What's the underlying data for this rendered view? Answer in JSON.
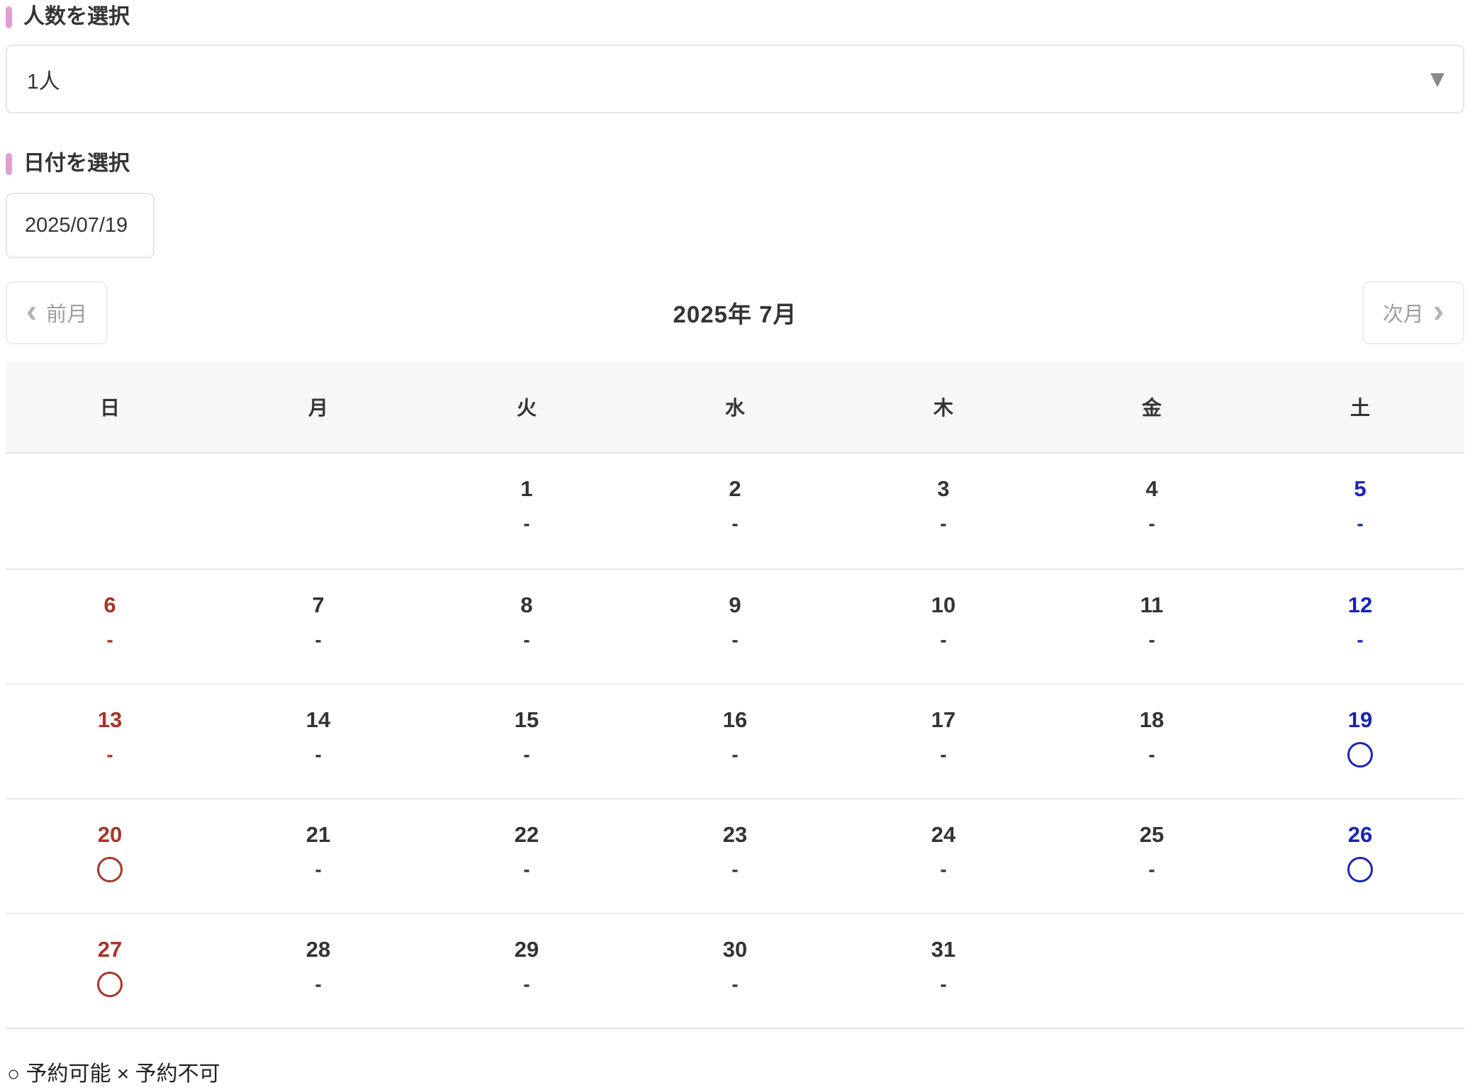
{
  "colors": {
    "accent_pink": "#e49cd5",
    "sunday_red": "#a83428",
    "saturday_blue": "#1b23b4",
    "text_dark": "#333333"
  },
  "icons": {
    "dropdown_arrow": "▼",
    "chevron_left": "‹",
    "chevron_right": "›"
  },
  "people_section": {
    "label": "人数を選択",
    "selected_value": "1人"
  },
  "date_section": {
    "label": "日付を選択",
    "value": "2025/07/19"
  },
  "calendar": {
    "prev_button_label": "前月",
    "next_button_label": "次月",
    "title": "2025年 7月",
    "weekdays": [
      "日",
      "月",
      "火",
      "水",
      "木",
      "金",
      "土"
    ],
    "weeks": [
      [
        {
          "d": "",
          "s": ""
        },
        {
          "d": "",
          "s": ""
        },
        {
          "d": "1",
          "s": "-"
        },
        {
          "d": "2",
          "s": "-"
        },
        {
          "d": "3",
          "s": "-"
        },
        {
          "d": "4",
          "s": "-"
        },
        {
          "d": "5",
          "s": "-"
        }
      ],
      [
        {
          "d": "6",
          "s": "-"
        },
        {
          "d": "7",
          "s": "-"
        },
        {
          "d": "8",
          "s": "-"
        },
        {
          "d": "9",
          "s": "-"
        },
        {
          "d": "10",
          "s": "-"
        },
        {
          "d": "11",
          "s": "-"
        },
        {
          "d": "12",
          "s": "-"
        }
      ],
      [
        {
          "d": "13",
          "s": "-"
        },
        {
          "d": "14",
          "s": "-"
        },
        {
          "d": "15",
          "s": "-"
        },
        {
          "d": "16",
          "s": "-"
        },
        {
          "d": "17",
          "s": "-"
        },
        {
          "d": "18",
          "s": "-"
        },
        {
          "d": "19",
          "s": "o"
        }
      ],
      [
        {
          "d": "20",
          "s": "o"
        },
        {
          "d": "21",
          "s": "-"
        },
        {
          "d": "22",
          "s": "-"
        },
        {
          "d": "23",
          "s": "-"
        },
        {
          "d": "24",
          "s": "-"
        },
        {
          "d": "25",
          "s": "-"
        },
        {
          "d": "26",
          "s": "o"
        }
      ],
      [
        {
          "d": "27",
          "s": "o"
        },
        {
          "d": "28",
          "s": "-"
        },
        {
          "d": "29",
          "s": "-"
        },
        {
          "d": "30",
          "s": "-"
        },
        {
          "d": "31",
          "s": "-"
        },
        {
          "d": "",
          "s": ""
        },
        {
          "d": "",
          "s": ""
        }
      ]
    ]
  },
  "legend": {
    "text": "○ 予約可能 × 予約不可"
  }
}
